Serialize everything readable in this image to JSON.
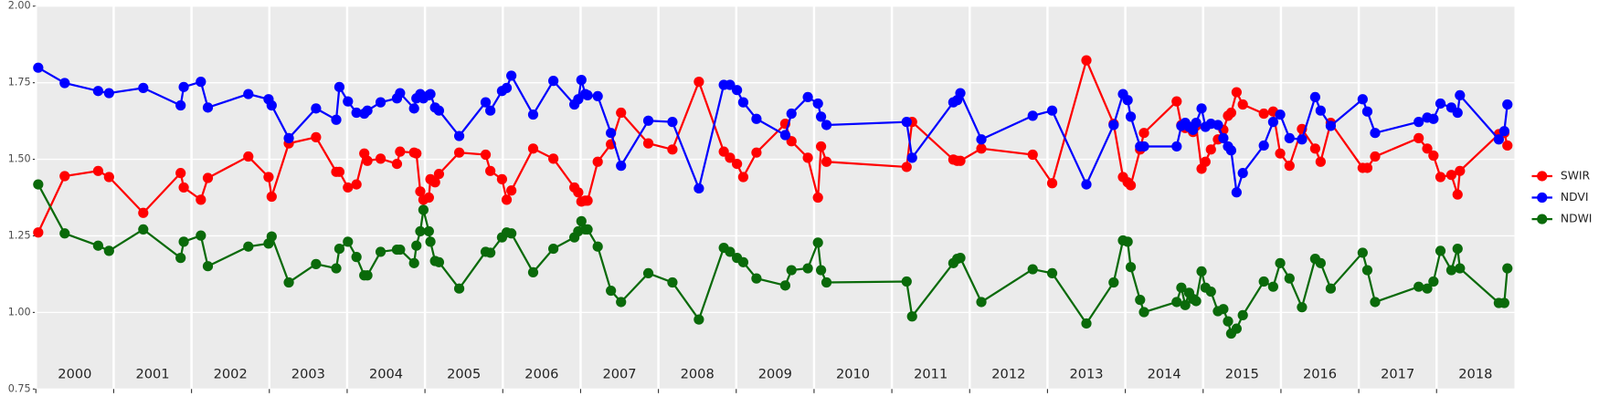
{
  "chart_data": {
    "type": "line",
    "x": [
      2000.03,
      2000.37,
      2000.8,
      2000.94,
      2001.38,
      2001.86,
      2001.9,
      2002.12,
      2002.21,
      2002.73,
      2002.99,
      2003.03,
      2003.25,
      2003.6,
      2003.86,
      2003.9,
      2004.01,
      2004.12,
      2004.22,
      2004.26,
      2004.43,
      2004.64,
      2004.68,
      2004.86,
      2004.89,
      2004.94,
      2004.98,
      2005.05,
      2005.07,
      2005.13,
      2005.18,
      2005.44,
      2005.78,
      2005.84,
      2005.99,
      2006.05,
      2006.11,
      2006.39,
      2006.65,
      2006.92,
      2006.97,
      2007.01,
      2007.06,
      2007.09,
      2007.22,
      2007.39,
      2007.52,
      2007.87,
      2008.18,
      2008.52,
      2008.84,
      2008.92,
      2009.01,
      2009.09,
      2009.26,
      2009.63,
      2009.71,
      2009.92,
      2010.05,
      2010.09,
      2010.16,
      2011.19,
      2011.26,
      2011.79,
      2011.84,
      2011.88,
      2012.15,
      2012.81,
      2013.06,
      2013.5,
      2013.85,
      2013.97,
      2014.03,
      2014.07,
      2014.19,
      2014.24,
      2014.66,
      2014.72,
      2014.77,
      2014.82,
      2014.87,
      2014.91,
      2014.98,
      2015.03,
      2015.1,
      2015.19,
      2015.26,
      2015.32,
      2015.36,
      2015.43,
      2015.51,
      2015.78,
      2015.9,
      2015.99,
      2016.11,
      2016.27,
      2016.44,
      2016.51,
      2016.64,
      2017.05,
      2017.11,
      2017.21,
      2017.77,
      2017.88,
      2017.96,
      2018.05,
      2018.19,
      2018.27,
      2018.3,
      2018.8,
      2018.87,
      2018.91
    ],
    "series": [
      {
        "name": "SWIR",
        "color": "#ff0000",
        "values": [
          1.261,
          1.445,
          1.462,
          1.442,
          1.325,
          1.455,
          1.408,
          1.368,
          1.439,
          1.509,
          1.442,
          1.378,
          1.552,
          1.572,
          1.459,
          1.459,
          1.408,
          1.418,
          1.519,
          1.495,
          1.502,
          1.485,
          1.525,
          1.522,
          1.519,
          1.395,
          1.368,
          1.375,
          1.435,
          1.425,
          1.452,
          1.522,
          1.515,
          1.462,
          1.435,
          1.368,
          1.398,
          1.535,
          1.502,
          1.408,
          1.392,
          1.362,
          1.365,
          1.365,
          1.492,
          1.549,
          1.652,
          1.552,
          1.532,
          1.753,
          1.525,
          1.505,
          1.485,
          1.442,
          1.522,
          1.616,
          1.559,
          1.505,
          1.375,
          1.542,
          1.492,
          1.475,
          1.622,
          1.499,
          1.495,
          1.495,
          1.535,
          1.515,
          1.422,
          1.823,
          1.616,
          1.442,
          1.425,
          1.415,
          1.532,
          1.586,
          1.689,
          1.612,
          1.602,
          1.606,
          1.589,
          1.609,
          1.469,
          1.492,
          1.532,
          1.565,
          1.596,
          1.642,
          1.652,
          1.719,
          1.679,
          1.649,
          1.656,
          1.519,
          1.479,
          1.599,
          1.535,
          1.492,
          1.619,
          1.472,
          1.472,
          1.509,
          1.569,
          1.535,
          1.512,
          1.442,
          1.449,
          1.385,
          1.462,
          1.582,
          1.586,
          1.545
        ]
      },
      {
        "name": "NDVI",
        "color": "#0000ff",
        "values": [
          1.799,
          1.749,
          1.723,
          1.716,
          1.733,
          1.676,
          1.736,
          1.753,
          1.669,
          1.713,
          1.696,
          1.676,
          1.569,
          1.666,
          1.629,
          1.736,
          1.689,
          1.652,
          1.649,
          1.659,
          1.686,
          1.699,
          1.716,
          1.666,
          1.699,
          1.713,
          1.699,
          1.709,
          1.713,
          1.669,
          1.659,
          1.576,
          1.686,
          1.659,
          1.723,
          1.733,
          1.773,
          1.646,
          1.756,
          1.679,
          1.696,
          1.759,
          1.713,
          1.709,
          1.706,
          1.586,
          1.479,
          1.626,
          1.622,
          1.405,
          1.743,
          1.743,
          1.726,
          1.686,
          1.632,
          1.579,
          1.649,
          1.703,
          1.682,
          1.639,
          1.612,
          1.622,
          1.505,
          1.686,
          1.693,
          1.716,
          1.565,
          1.642,
          1.659,
          1.418,
          1.612,
          1.713,
          1.693,
          1.639,
          1.542,
          1.542,
          1.542,
          1.609,
          1.619,
          1.606,
          1.596,
          1.619,
          1.666,
          1.606,
          1.616,
          1.612,
          1.569,
          1.542,
          1.529,
          1.392,
          1.455,
          1.545,
          1.622,
          1.646,
          1.569,
          1.565,
          1.703,
          1.659,
          1.609,
          1.696,
          1.656,
          1.586,
          1.622,
          1.636,
          1.632,
          1.682,
          1.669,
          1.652,
          1.709,
          1.565,
          1.592,
          1.679
        ]
      },
      {
        "name": "NDWI",
        "color": "#0a6a0a",
        "values": [
          1.418,
          1.258,
          1.218,
          1.201,
          1.271,
          1.178,
          1.231,
          1.251,
          1.151,
          1.215,
          1.225,
          1.248,
          1.098,
          1.158,
          1.144,
          1.208,
          1.231,
          1.181,
          1.121,
          1.121,
          1.198,
          1.205,
          1.205,
          1.161,
          1.218,
          1.265,
          1.335,
          1.265,
          1.231,
          1.168,
          1.164,
          1.078,
          1.198,
          1.195,
          1.245,
          1.261,
          1.258,
          1.131,
          1.208,
          1.245,
          1.265,
          1.298,
          1.271,
          1.271,
          1.215,
          1.071,
          1.034,
          1.128,
          1.098,
          0.977,
          1.211,
          1.198,
          1.178,
          1.164,
          1.111,
          1.088,
          1.138,
          1.144,
          1.228,
          1.138,
          1.098,
          1.101,
          0.987,
          1.161,
          1.175,
          1.178,
          1.034,
          1.141,
          1.128,
          0.964,
          1.098,
          1.235,
          1.231,
          1.148,
          1.041,
          1.001,
          1.034,
          1.081,
          1.024,
          1.064,
          1.044,
          1.037,
          1.134,
          1.081,
          1.068,
          1.004,
          1.011,
          0.971,
          0.931,
          0.947,
          0.991,
          1.101,
          1.084,
          1.161,
          1.111,
          1.017,
          1.175,
          1.161,
          1.078,
          1.195,
          1.138,
          1.034,
          1.084,
          1.078,
          1.101,
          1.201,
          1.138,
          1.208,
          1.144,
          1.031,
          1.031,
          1.144
        ]
      }
    ],
    "xlim": [
      2000,
      2019
    ],
    "xticks": [
      {
        "value": 2000,
        "label": "2000"
      },
      {
        "value": 2001,
        "label": "2001"
      },
      {
        "value": 2002,
        "label": "2002"
      },
      {
        "value": 2003,
        "label": "2003"
      },
      {
        "value": 2004,
        "label": "2004"
      },
      {
        "value": 2005,
        "label": "2005"
      },
      {
        "value": 2006,
        "label": "2006"
      },
      {
        "value": 2007,
        "label": "2007"
      },
      {
        "value": 2008,
        "label": "2008"
      },
      {
        "value": 2009,
        "label": "2009"
      },
      {
        "value": 2010,
        "label": "2010"
      },
      {
        "value": 2011,
        "label": "2011"
      },
      {
        "value": 2012,
        "label": "2012"
      },
      {
        "value": 2013,
        "label": "2013"
      },
      {
        "value": 2014,
        "label": "2014"
      },
      {
        "value": 2015,
        "label": "2015"
      },
      {
        "value": 2016,
        "label": "2016"
      },
      {
        "value": 2017,
        "label": "2017"
      },
      {
        "value": 2018,
        "label": "2018"
      }
    ],
    "ylim": [
      0.75,
      2.0
    ],
    "yticks": [
      {
        "value": 0.75,
        "label": "0.75"
      },
      {
        "value": 1.0,
        "label": "1.00"
      },
      {
        "value": 1.25,
        "label": "1.25"
      },
      {
        "value": 1.5,
        "label": "1.50"
      },
      {
        "value": 1.75,
        "label": "1.75"
      },
      {
        "value": 2.0,
        "label": "2.00"
      }
    ],
    "grid": true,
    "legend": "right"
  }
}
